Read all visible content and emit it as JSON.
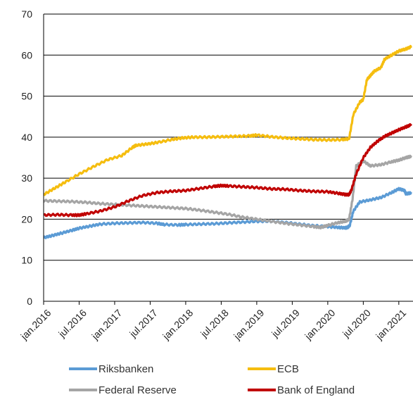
{
  "chart_data": {
    "type": "line",
    "title": "",
    "xlabel": "",
    "ylabel": "",
    "ylim": [
      0,
      70
    ],
    "yticks": [
      0,
      10,
      20,
      30,
      40,
      50,
      60,
      70
    ],
    "xlim": [
      2016.0,
      2021.17
    ],
    "xticks": [
      {
        "label": "jan.2016",
        "x": 2016.0
      },
      {
        "label": "jul.2016",
        "x": 2016.5
      },
      {
        "label": "jan.2017",
        "x": 2017.0
      },
      {
        "label": "jul.2017",
        "x": 2017.5
      },
      {
        "label": "jan.2018",
        "x": 2018.0
      },
      {
        "label": "jul.2018",
        "x": 2018.5
      },
      {
        "label": "jan.2019",
        "x": 2019.0
      },
      {
        "label": "jul.2019",
        "x": 2019.5
      },
      {
        "label": "jan.2020",
        "x": 2020.0
      },
      {
        "label": "jul.2020",
        "x": 2020.5
      },
      {
        "label": "jan.2021",
        "x": 2021.0
      }
    ],
    "grid": "horizontal",
    "legend_position": "bottom",
    "series": [
      {
        "name": "Riksbanken",
        "color": "#5b9bd5",
        "x": [
          2016.0,
          2016.12,
          2016.25,
          2016.4,
          2016.5,
          2016.65,
          2016.8,
          2017.0,
          2017.2,
          2017.4,
          2017.6,
          2017.7,
          2017.9,
          2018.0,
          2018.2,
          2018.4,
          2018.6,
          2018.8,
          2019.0,
          2019.2,
          2019.4,
          2019.6,
          2019.8,
          2020.0,
          2020.15,
          2020.25,
          2020.28,
          2020.31,
          2020.36,
          2020.45,
          2020.6,
          2020.75,
          2020.9,
          2021.0,
          2021.08,
          2021.1,
          2021.17
        ],
        "y": [
          15.5,
          16.0,
          16.6,
          17.3,
          17.8,
          18.3,
          18.8,
          19.0,
          19.1,
          19.2,
          19.0,
          18.7,
          18.6,
          18.7,
          18.8,
          18.9,
          19.1,
          19.3,
          19.5,
          19.5,
          19.2,
          18.8,
          18.4,
          18.2,
          18.0,
          17.9,
          18.0,
          18.5,
          22.0,
          24.2,
          24.7,
          25.3,
          26.5,
          27.4,
          27.0,
          26.2,
          26.4
        ]
      },
      {
        "name": "ECB",
        "color": "#f5bd0f",
        "x": [
          2016.0,
          2016.15,
          2016.3,
          2016.5,
          2016.7,
          2016.9,
          2017.1,
          2017.25,
          2017.3,
          2017.45,
          2017.6,
          2017.8,
          2017.95,
          2018.1,
          2018.3,
          2018.5,
          2018.7,
          2018.9,
          2019.0,
          2019.2,
          2019.4,
          2019.6,
          2019.8,
          2020.0,
          2020.2,
          2020.3,
          2020.36,
          2020.45,
          2020.5,
          2020.55,
          2020.6,
          2020.65,
          2020.75,
          2020.8,
          2020.9,
          2021.0,
          2021.1,
          2021.17
        ],
        "y": [
          26.0,
          27.5,
          29.0,
          31.0,
          32.8,
          34.5,
          35.5,
          37.5,
          38.0,
          38.3,
          38.7,
          39.4,
          39.8,
          40.0,
          40.0,
          40.1,
          40.2,
          40.3,
          40.5,
          40.1,
          39.8,
          39.6,
          39.4,
          39.3,
          39.4,
          39.6,
          45.5,
          48.5,
          49.2,
          54.0,
          55.0,
          56.0,
          57.0,
          59.0,
          60.0,
          61.0,
          61.5,
          62.0
        ]
      },
      {
        "name": "Federal Reserve",
        "color": "#a5a5a5",
        "x": [
          2016.0,
          2016.2,
          2016.4,
          2016.6,
          2016.8,
          2017.0,
          2017.2,
          2017.4,
          2017.6,
          2017.8,
          2018.0,
          2018.2,
          2018.4,
          2018.6,
          2018.8,
          2019.0,
          2019.2,
          2019.4,
          2019.6,
          2019.8,
          2019.9,
          2020.0,
          2020.15,
          2020.25,
          2020.3,
          2020.35,
          2020.4,
          2020.5,
          2020.6,
          2020.75,
          2020.9,
          2021.0,
          2021.1,
          2021.17
        ],
        "y": [
          24.5,
          24.4,
          24.3,
          24.1,
          23.8,
          23.6,
          23.4,
          23.2,
          23.0,
          22.8,
          22.6,
          22.2,
          21.7,
          21.2,
          20.5,
          20.0,
          19.5,
          19.0,
          18.6,
          18.2,
          18.0,
          18.5,
          19.2,
          19.5,
          20.0,
          25.0,
          33.0,
          34.2,
          33.0,
          33.3,
          34.0,
          34.4,
          35.0,
          35.3
        ]
      },
      {
        "name": "Bank of England",
        "color": "#c00000",
        "x": [
          2016.0,
          2016.2,
          2016.4,
          2016.5,
          2016.6,
          2016.8,
          2017.0,
          2017.2,
          2017.4,
          2017.6,
          2017.8,
          2018.0,
          2018.2,
          2018.4,
          2018.5,
          2018.6,
          2018.8,
          2019.0,
          2019.2,
          2019.4,
          2019.6,
          2019.8,
          2020.0,
          2020.15,
          2020.25,
          2020.3,
          2020.33,
          2020.4,
          2020.5,
          2020.6,
          2020.7,
          2020.8,
          2020.9,
          2021.0,
          2021.1,
          2021.17
        ],
        "y": [
          21.0,
          21.1,
          21.0,
          21.0,
          21.3,
          22.0,
          23.0,
          24.5,
          25.8,
          26.5,
          26.8,
          27.0,
          27.5,
          28.0,
          28.2,
          28.1,
          27.9,
          27.7,
          27.4,
          27.3,
          27.0,
          26.8,
          26.7,
          26.3,
          26.0,
          26.0,
          27.0,
          31.0,
          35.0,
          37.5,
          39.0,
          40.2,
          41.0,
          41.8,
          42.5,
          43.0
        ]
      }
    ]
  }
}
